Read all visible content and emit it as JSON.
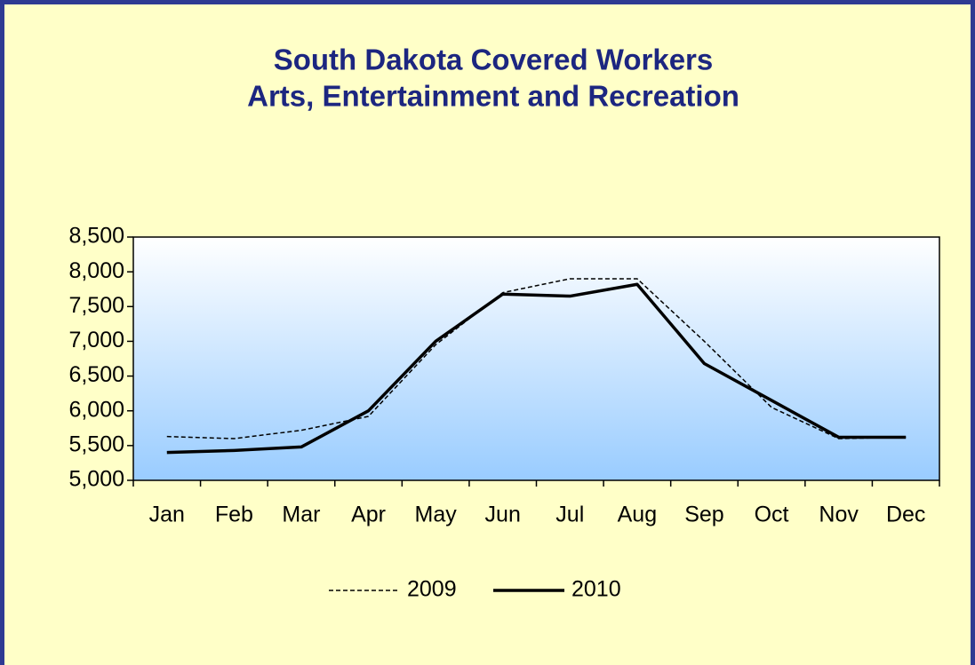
{
  "chart_data": {
    "type": "line",
    "title": [
      "South Dakota Covered Workers",
      "Arts, Entertainment and Recreation"
    ],
    "categories": [
      "Jan",
      "Feb",
      "Mar",
      "Apr",
      "May",
      "Jun",
      "Jul",
      "Aug",
      "Sep",
      "Oct",
      "Nov",
      "Dec"
    ],
    "series": [
      {
        "name": "2009",
        "color": "#000000",
        "style": "dashed",
        "values": [
          5630,
          5600,
          5720,
          5920,
          6950,
          7700,
          7900,
          7900,
          7000,
          6050,
          5600,
          5620
        ]
      },
      {
        "name": "2010",
        "color": "#000000",
        "style": "solid",
        "values": [
          5400,
          5430,
          5480,
          6000,
          7000,
          7680,
          7650,
          7820,
          6680,
          6150,
          5620,
          5620
        ]
      }
    ],
    "ylim": [
      5000,
      8500
    ],
    "yticks": [
      {
        "value": 5000,
        "label": "5,000"
      },
      {
        "value": 5500,
        "label": "5,500"
      },
      {
        "value": 6000,
        "label": "6,000"
      },
      {
        "value": 6500,
        "label": "6,500"
      },
      {
        "value": 7000,
        "label": "7,000"
      },
      {
        "value": 7500,
        "label": "7,500"
      },
      {
        "value": 8000,
        "label": "8,000"
      },
      {
        "value": 8500,
        "label": "8,500"
      }
    ],
    "legend": "bottom"
  }
}
